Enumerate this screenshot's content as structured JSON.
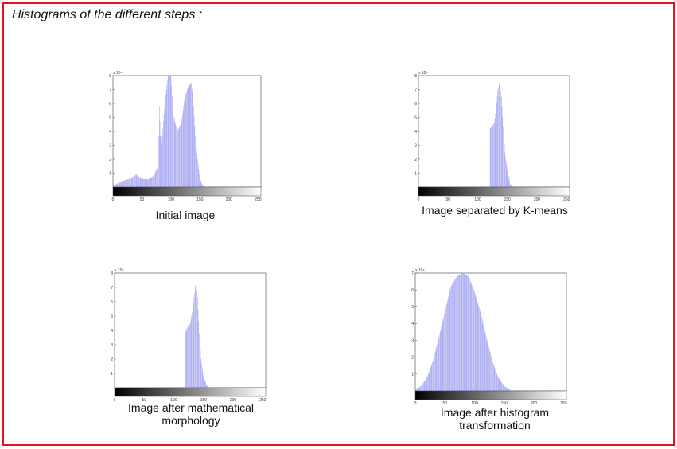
{
  "page_title": "Histograms of the different steps :",
  "colors": {
    "frame": "#ee1111",
    "bars": "#9a9af0",
    "axes": "#444444"
  },
  "captions": {
    "p1": [
      "Initial image"
    ],
    "p2": [
      "Image separated by K-means"
    ],
    "p3": [
      "Image after mathematical",
      "morphology"
    ],
    "p4": [
      "Image after histogram",
      "transformation"
    ]
  },
  "chart_data": [
    {
      "type": "bar",
      "title": "",
      "multiplier": "x 10⁴",
      "xlim": [
        0,
        255
      ],
      "ylim": [
        0,
        8
      ],
      "x_ticks": [
        0,
        50,
        100,
        150,
        200,
        250
      ],
      "y_ticks": [
        1,
        2,
        3,
        4,
        5,
        6,
        7,
        8
      ],
      "x": [
        0,
        10,
        20,
        30,
        40,
        50,
        60,
        70,
        78,
        80,
        83,
        86,
        90,
        95,
        100,
        104,
        108,
        112,
        118,
        124,
        130,
        135,
        138,
        142,
        146,
        150,
        155,
        160
      ],
      "values": [
        0.1,
        0.3,
        0.5,
        0.6,
        0.9,
        0.6,
        0.55,
        0.8,
        1.5,
        5.8,
        2.6,
        4.2,
        6.3,
        8.0,
        8.0,
        5.2,
        4.5,
        4.1,
        4.6,
        6.5,
        7.2,
        7.5,
        6.5,
        3.7,
        2.0,
        0.6,
        0.1,
        0.0
      ]
    },
    {
      "type": "bar",
      "title": "",
      "multiplier": "x 10⁴",
      "xlim": [
        0,
        255
      ],
      "ylim": [
        0,
        8
      ],
      "x_ticks": [
        0,
        50,
        100,
        150,
        200,
        250
      ],
      "y_ticks": [
        1,
        2,
        3,
        4,
        5,
        6,
        7,
        8
      ],
      "x": [
        120,
        121,
        125,
        128,
        131,
        134,
        137,
        140,
        143,
        146,
        150,
        155,
        160
      ],
      "values": [
        0.0,
        4.2,
        4.4,
        4.6,
        5.6,
        7.0,
        7.5,
        6.5,
        4.3,
        2.5,
        1.2,
        0.2,
        0.0
      ]
    },
    {
      "type": "bar",
      "title": "",
      "multiplier": "x 10⁴",
      "xlim": [
        0,
        255
      ],
      "ylim": [
        0,
        8
      ],
      "x_ticks": [
        0,
        50,
        100,
        150,
        200,
        250
      ],
      "y_ticks": [
        1,
        2,
        3,
        4,
        5,
        6,
        7,
        8
      ],
      "x": [
        119,
        120,
        124,
        128,
        132,
        136,
        138,
        140,
        143,
        146,
        150,
        155,
        160
      ],
      "values": [
        0.0,
        3.9,
        4.3,
        4.5,
        5.5,
        7.0,
        7.4,
        6.3,
        3.8,
        2.0,
        0.8,
        0.2,
        0.0
      ]
    },
    {
      "type": "bar",
      "title": "",
      "multiplier": "x 10⁴",
      "xlim": [
        0,
        255
      ],
      "ylim": [
        0,
        7
      ],
      "x_ticks": [
        0,
        50,
        100,
        150,
        200,
        250
      ],
      "y_ticks": [
        1,
        2,
        3,
        4,
        5,
        6,
        7
      ],
      "x": [
        0,
        10,
        20,
        30,
        40,
        50,
        60,
        70,
        80,
        90,
        100,
        110,
        120,
        130,
        140,
        150,
        160
      ],
      "values": [
        0.05,
        0.3,
        0.8,
        1.8,
        3.2,
        4.7,
        6.2,
        6.8,
        7.0,
        6.8,
        5.9,
        4.7,
        3.2,
        1.8,
        0.8,
        0.3,
        0.05
      ]
    }
  ]
}
